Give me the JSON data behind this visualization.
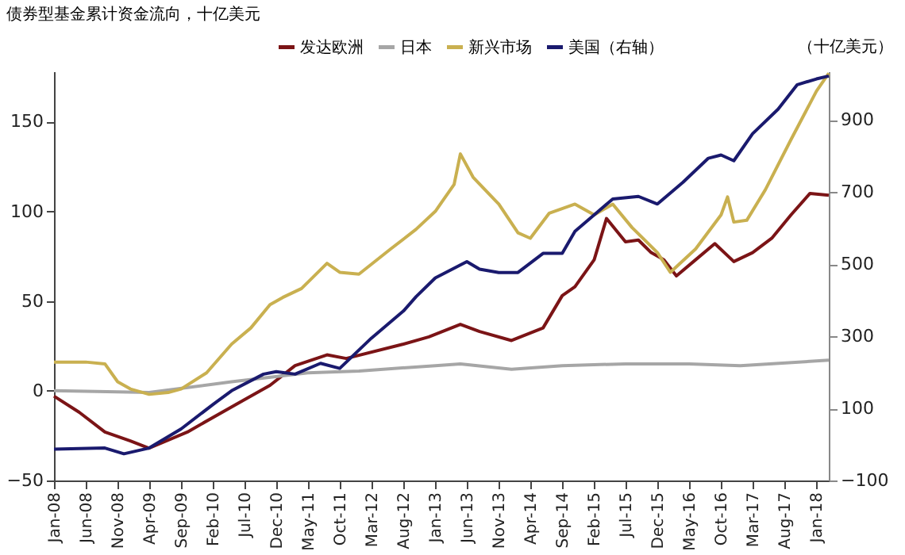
{
  "chart_data": {
    "type": "line",
    "title": "债券型基金累计资金流向，十亿美元",
    "y2label": "（十亿美元）",
    "xlim": [
      "2008-01",
      "2018-03"
    ],
    "xticks": [
      {
        "value": "2008-01",
        "label": "Jan-08"
      },
      {
        "value": "2008-06",
        "label": "Jun-08"
      },
      {
        "value": "2008-11",
        "label": "Nov-08"
      },
      {
        "value": "2009-04",
        "label": "Apr-09"
      },
      {
        "value": "2009-09",
        "label": "Sep-09"
      },
      {
        "value": "2010-02",
        "label": "Feb-10"
      },
      {
        "value": "2010-07",
        "label": "Jul-10"
      },
      {
        "value": "2010-12",
        "label": "Dec-10"
      },
      {
        "value": "2011-05",
        "label": "May-11"
      },
      {
        "value": "2011-10",
        "label": "Oct-11"
      },
      {
        "value": "2012-03",
        "label": "Mar-12"
      },
      {
        "value": "2012-08",
        "label": "Aug-12"
      },
      {
        "value": "2013-01",
        "label": "Jan-13"
      },
      {
        "value": "2013-06",
        "label": "Jun-13"
      },
      {
        "value": "2013-11",
        "label": "Nov-13"
      },
      {
        "value": "2014-04",
        "label": "Apr-14"
      },
      {
        "value": "2014-09",
        "label": "Sep-14"
      },
      {
        "value": "2015-02",
        "label": "Feb-15"
      },
      {
        "value": "2015-07",
        "label": "Jul-15"
      },
      {
        "value": "2015-12",
        "label": "Dec-15"
      },
      {
        "value": "2016-05",
        "label": "May-16"
      },
      {
        "value": "2016-10",
        "label": "Oct-16"
      },
      {
        "value": "2017-03",
        "label": "Mar-17"
      },
      {
        "value": "2017-08",
        "label": "Aug-17"
      },
      {
        "value": "2018-01",
        "label": "Jan-18"
      }
    ],
    "ylim": [
      -50,
      178
    ],
    "yticks": [
      -50,
      0,
      50,
      100,
      150
    ],
    "y2lim": [
      -100,
      1035
    ],
    "y2ticks": [
      -100,
      100,
      300,
      500,
      700,
      900
    ],
    "grid": false,
    "legend": "top",
    "marker": "none",
    "line_style": "solid",
    "series": [
      {
        "name": "发达欧洲",
        "color": "#7b1416",
        "x": [
          "2008-01",
          "2008-05",
          "2008-09",
          "2009-01",
          "2009-04",
          "2009-10",
          "2010-05",
          "2010-11",
          "2011-03",
          "2011-08",
          "2011-11",
          "2012-08",
          "2012-12",
          "2013-05",
          "2013-08",
          "2014-01",
          "2014-06",
          "2014-09",
          "2014-11",
          "2015-02",
          "2015-04",
          "2015-07",
          "2015-09",
          "2015-11",
          "2016-01",
          "2016-03",
          "2016-06",
          "2016-09",
          "2016-12",
          "2017-03",
          "2017-06",
          "2017-09",
          "2017-12",
          "2018-03"
        ],
        "values": [
          -3,
          -12,
          -23,
          -28,
          -32,
          -23,
          -9,
          3,
          14,
          20,
          18,
          26,
          30,
          37,
          33,
          28,
          35,
          53,
          58,
          73,
          96,
          83,
          84,
          77,
          73,
          64,
          73,
          82,
          72,
          77,
          85,
          98,
          110,
          109
        ]
      },
      {
        "name": "日本",
        "color": "#a6a6a6",
        "x": [
          "2008-01",
          "2009-04",
          "2010-05",
          "2011-05",
          "2012-01",
          "2013-01",
          "2013-05",
          "2014-01",
          "2014-09",
          "2015-07",
          "2016-05",
          "2017-01",
          "2018-03"
        ],
        "values": [
          0,
          -1,
          5,
          10,
          11,
          14,
          15,
          12,
          14,
          15,
          15,
          14,
          17
        ]
      },
      {
        "name": "新兴市场",
        "color": "#c9b050",
        "x": [
          "2008-01",
          "2008-06",
          "2008-09",
          "2008-11",
          "2009-01",
          "2009-04",
          "2009-07",
          "2009-09",
          "2010-01",
          "2010-05",
          "2010-08",
          "2010-11",
          "2011-01",
          "2011-04",
          "2011-08",
          "2011-10",
          "2012-01",
          "2012-06",
          "2012-10",
          "2013-01",
          "2013-04",
          "2013-05",
          "2013-07",
          "2013-11",
          "2014-02",
          "2014-04",
          "2014-07",
          "2014-11",
          "2015-02",
          "2015-05",
          "2015-08",
          "2015-12",
          "2016-02",
          "2016-06",
          "2016-10",
          "2016-11",
          "2016-12",
          "2017-02",
          "2017-05",
          "2017-09",
          "2018-01",
          "2018-03"
        ],
        "values": [
          16,
          16,
          15,
          5,
          1,
          -2,
          -1,
          1,
          10,
          26,
          35,
          48,
          52,
          57,
          71,
          66,
          65,
          79,
          90,
          100,
          115,
          132,
          119,
          104,
          88,
          85,
          99,
          104,
          98,
          104,
          91,
          77,
          66,
          79,
          98,
          108,
          94,
          95,
          112,
          140,
          167,
          177
        ]
      },
      {
        "name": "美国（右轴）",
        "color": "#1a1a6e",
        "axis": "y2",
        "x": [
          "2008-01",
          "2008-09",
          "2008-12",
          "2009-04",
          "2009-09",
          "2010-02",
          "2010-05",
          "2010-10",
          "2010-12",
          "2011-03",
          "2011-07",
          "2011-10",
          "2012-03",
          "2012-08",
          "2012-10",
          "2013-01",
          "2013-06",
          "2013-08",
          "2013-11",
          "2014-02",
          "2014-06",
          "2014-09",
          "2014-11",
          "2015-02",
          "2015-05",
          "2015-09",
          "2015-12",
          "2016-04",
          "2016-08",
          "2016-10",
          "2016-12",
          "2017-03",
          "2017-07",
          "2017-10",
          "2018-01",
          "2018-03"
        ],
        "values": [
          -13,
          -10,
          -26,
          -10,
          43,
          111,
          149,
          195,
          202,
          195,
          225,
          211,
          295,
          370,
          410,
          462,
          507,
          486,
          477,
          477,
          530,
          530,
          591,
          637,
          681,
          688,
          667,
          727,
          794,
          803,
          787,
          862,
          930,
          998,
          1014,
          1022
        ]
      }
    ]
  }
}
